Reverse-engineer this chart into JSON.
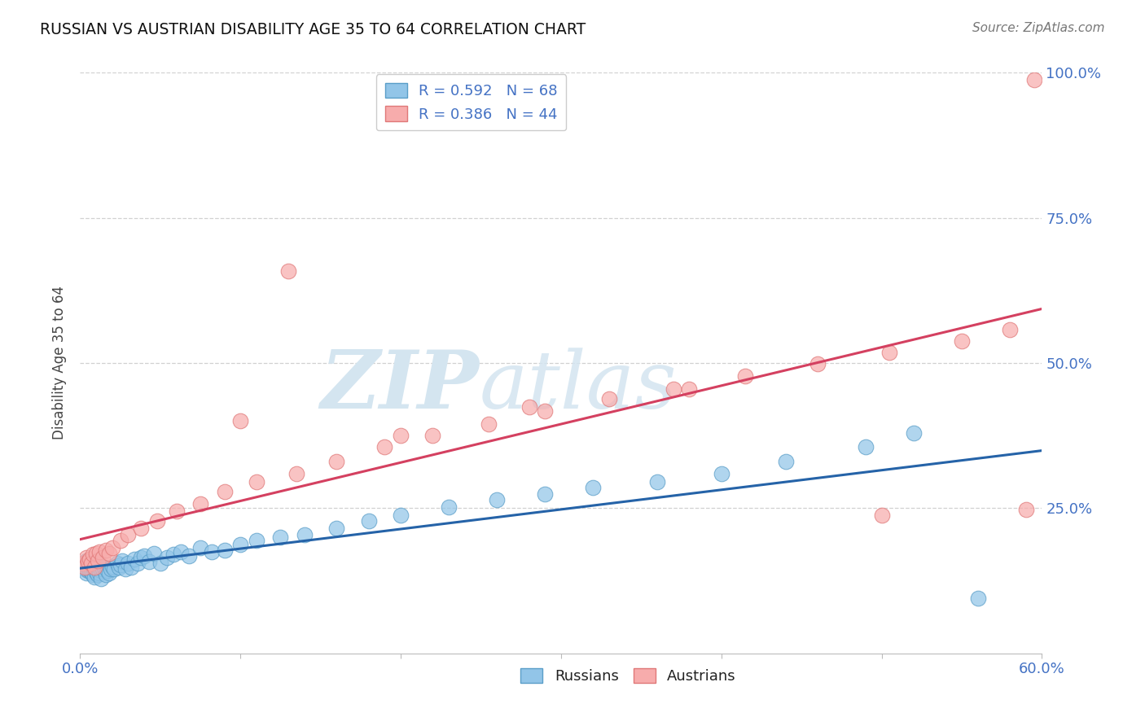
{
  "title": "RUSSIAN VS AUSTRIAN DISABILITY AGE 35 TO 64 CORRELATION CHART",
  "source": "Source: ZipAtlas.com",
  "ylabel": "Disability Age 35 to 64",
  "xlim": [
    0.0,
    0.6
  ],
  "ylim": [
    0.0,
    1.0
  ],
  "blue_color": "#92C5E8",
  "pink_color": "#F7ACAC",
  "blue_edge": "#5A9EC8",
  "pink_edge": "#E07878",
  "blue_line_color": "#2563A8",
  "pink_line_color": "#D44060",
  "axis_label_color": "#4472C4",
  "title_color": "#111111",
  "source_color": "#777777",
  "watermark_color": "#D4E5F0",
  "russian_R": 0.592,
  "russian_N": 68,
  "austrian_R": 0.386,
  "austrian_N": 44,
  "russian_x": [
    0.002,
    0.003,
    0.004,
    0.004,
    0.005,
    0.005,
    0.006,
    0.006,
    0.007,
    0.007,
    0.008,
    0.008,
    0.009,
    0.009,
    0.01,
    0.01,
    0.011,
    0.011,
    0.012,
    0.012,
    0.013,
    0.013,
    0.014,
    0.015,
    0.016,
    0.017,
    0.018,
    0.019,
    0.02,
    0.021,
    0.023,
    0.024,
    0.025,
    0.026,
    0.028,
    0.03,
    0.032,
    0.034,
    0.036,
    0.038,
    0.04,
    0.043,
    0.046,
    0.05,
    0.054,
    0.058,
    0.063,
    0.068,
    0.075,
    0.082,
    0.09,
    0.1,
    0.11,
    0.125,
    0.14,
    0.16,
    0.18,
    0.2,
    0.23,
    0.26,
    0.29,
    0.32,
    0.36,
    0.4,
    0.44,
    0.49,
    0.52,
    0.56
  ],
  "russian_y": [
    0.155,
    0.145,
    0.16,
    0.138,
    0.15,
    0.142,
    0.152,
    0.143,
    0.148,
    0.14,
    0.158,
    0.135,
    0.144,
    0.132,
    0.155,
    0.14,
    0.148,
    0.135,
    0.152,
    0.138,
    0.142,
    0.128,
    0.145,
    0.148,
    0.135,
    0.142,
    0.138,
    0.145,
    0.15,
    0.145,
    0.155,
    0.148,
    0.152,
    0.16,
    0.145,
    0.155,
    0.148,
    0.162,
    0.155,
    0.165,
    0.168,
    0.158,
    0.172,
    0.155,
    0.165,
    0.17,
    0.175,
    0.168,
    0.182,
    0.175,
    0.178,
    0.188,
    0.195,
    0.2,
    0.205,
    0.215,
    0.228,
    0.238,
    0.252,
    0.265,
    0.275,
    0.285,
    0.295,
    0.31,
    0.33,
    0.355,
    0.38,
    0.095
  ],
  "austrian_x": [
    0.002,
    0.003,
    0.004,
    0.005,
    0.006,
    0.007,
    0.008,
    0.009,
    0.01,
    0.011,
    0.012,
    0.014,
    0.13,
    0.016,
    0.018,
    0.02,
    0.025,
    0.03,
    0.038,
    0.048,
    0.06,
    0.075,
    0.09,
    0.11,
    0.135,
    0.16,
    0.19,
    0.22,
    0.255,
    0.29,
    0.33,
    0.37,
    0.415,
    0.46,
    0.505,
    0.55,
    0.58,
    0.595,
    0.1,
    0.2,
    0.28,
    0.38,
    0.5,
    0.59
  ],
  "austrian_y": [
    0.155,
    0.148,
    0.165,
    0.158,
    0.162,
    0.155,
    0.17,
    0.148,
    0.172,
    0.16,
    0.175,
    0.165,
    0.658,
    0.178,
    0.172,
    0.182,
    0.195,
    0.205,
    0.215,
    0.228,
    0.245,
    0.258,
    0.278,
    0.295,
    0.31,
    0.33,
    0.355,
    0.375,
    0.395,
    0.418,
    0.438,
    0.455,
    0.478,
    0.498,
    0.518,
    0.538,
    0.558,
    0.988,
    0.4,
    0.375,
    0.425,
    0.455,
    0.238,
    0.248
  ]
}
